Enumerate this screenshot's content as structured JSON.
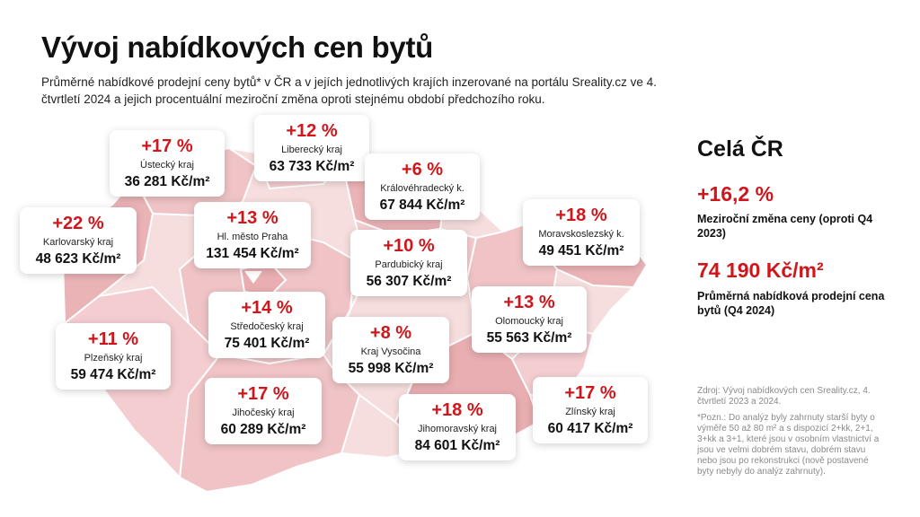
{
  "header": {
    "title": "Vývoj nabídkových cen bytů",
    "subtitle": "Průměrné nabídkové prodejní ceny bytů* v ČR a v jejích jednotlivých krajích inzerované na portálu Sreality.cz ve 4. čtvrtletí 2024 a jejich procentuální meziroční změna oproti stejnému období předchozího roku."
  },
  "colors": {
    "accent": "#d0161b",
    "map_light": "#f7dede",
    "map_medium": "#f0c4c6",
    "map_dark": "#e9aeb1"
  },
  "regions": [
    {
      "id": "ustecky",
      "pct": "+17 %",
      "name": "Ústecký kraj",
      "price": "36 281 Kč/m²"
    },
    {
      "id": "liberecky",
      "pct": "+12 %",
      "name": "Liberecký kraj",
      "price": "63 733 Kč/m²"
    },
    {
      "id": "kralovehradecky",
      "pct": "+6 %",
      "name": "Královéhradecký k.",
      "price": "67 844 Kč/m²"
    },
    {
      "id": "karlovarsky",
      "pct": "+22 %",
      "name": "Karlovarský kraj",
      "price": "48 623 Kč/m²"
    },
    {
      "id": "praha",
      "pct": "+13 %",
      "name": "Hl. město Praha",
      "price": "131 454 Kč/m²"
    },
    {
      "id": "moravskoslezsky",
      "pct": "+18 %",
      "name": "Moravskoslezský k.",
      "price": "49 451 Kč/m²"
    },
    {
      "id": "pardubicky",
      "pct": "+10 %",
      "name": "Pardubický kraj",
      "price": "56 307 Kč/m²"
    },
    {
      "id": "stredocesky",
      "pct": "+14 %",
      "name": "Středočeský kraj",
      "price": "75 401 Kč/m²"
    },
    {
      "id": "olomoucky",
      "pct": "+13 %",
      "name": "Olomoucký kraj",
      "price": "55 563 Kč/m²"
    },
    {
      "id": "plzensky",
      "pct": "+11 %",
      "name": "Plzeňský kraj",
      "price": "59 474 Kč/m²"
    },
    {
      "id": "vysocina",
      "pct": "+8 %",
      "name": "Kraj Vysočina",
      "price": "55 998 Kč/m²"
    },
    {
      "id": "jihocesky",
      "pct": "+17 %",
      "name": "Jihočeský kraj",
      "price": "60 289 Kč/m²"
    },
    {
      "id": "jihomoravsky",
      "pct": "+18 %",
      "name": "Jihomoravský kraj",
      "price": "84 601 Kč/m²"
    },
    {
      "id": "zlinsky",
      "pct": "+17 %",
      "name": "Zlínský kraj",
      "price": "60 417 Kč/m²"
    }
  ],
  "summary": {
    "title": "Celá ČR",
    "pct": "+16,2 %",
    "pct_label": "Meziroční změna ceny (oproti Q4 2023)",
    "price": "74 190 Kč/m²",
    "price_label": "Průměrná nabídková prodejní cena bytů (Q4 2024)"
  },
  "footer": {
    "source": "Zdroj: Vývoj nabídkových cen Sreality.cz, 4. čtvrtletí 2023 a 2024.",
    "note": "*Pozn.: Do analýz byly zahrnuty starší byty o výměře 50 až 80 m² a s dispozicí 2+kk, 2+1, 3+kk a 3+1, které jsou v osobním vlastnictví a jsou ve velmi dobrém stavu, dobrém stavu nebo jsou po rekonstrukci (nově postavené byty nebyly do analýz zahrnuty)."
  }
}
